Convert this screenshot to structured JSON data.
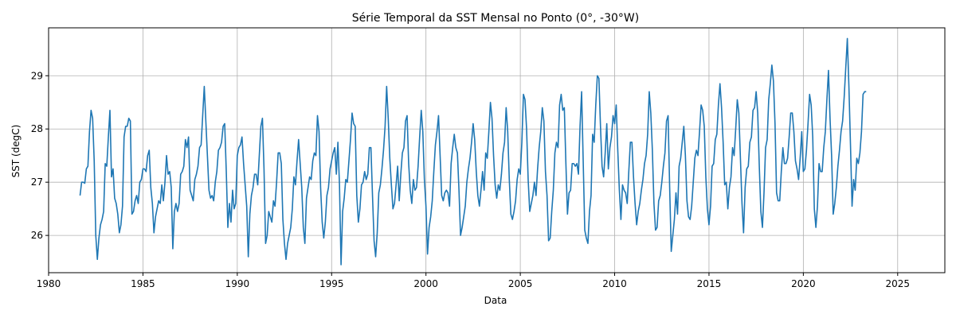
{
  "chart_data": {
    "type": "line",
    "title": "Série Temporal da SST Mensal no Ponto (0°, -30°W)",
    "xlabel": "Data",
    "ylabel": "SST (degC)",
    "xlim": [
      1980,
      2027.5
    ],
    "ylim": [
      25.3,
      29.9
    ],
    "xticks": [
      1980,
      1985,
      1990,
      1995,
      2000,
      2005,
      2010,
      2015,
      2020,
      2025
    ],
    "yticks": [
      26,
      27,
      28,
      29
    ],
    "grid": true,
    "legend": "none",
    "series": [
      {
        "color": "#1f77b4",
        "x_start": 1981.667,
        "x_step": 0.08333,
        "values": [
          26.75,
          27.0,
          27.0,
          26.98,
          27.25,
          27.3,
          27.95,
          28.35,
          28.2,
          27.4,
          26.0,
          25.55,
          25.95,
          26.2,
          26.3,
          26.45,
          27.35,
          27.3,
          27.85,
          28.35,
          27.1,
          27.25,
          26.7,
          26.6,
          26.4,
          26.05,
          26.2,
          26.55,
          27.85,
          28.05,
          28.05,
          28.2,
          28.15,
          26.4,
          26.45,
          26.65,
          26.75,
          26.6,
          27.0,
          27.05,
          27.25,
          27.25,
          27.2,
          27.5,
          27.6,
          26.9,
          26.6,
          26.05,
          26.35,
          26.5,
          26.65,
          26.6,
          26.95,
          26.65,
          27.0,
          27.5,
          27.15,
          27.2,
          26.9,
          25.75,
          26.45,
          26.6,
          26.45,
          26.6,
          27.15,
          27.2,
          27.3,
          27.8,
          27.65,
          27.85,
          26.85,
          26.75,
          26.65,
          27.05,
          27.15,
          27.3,
          27.65,
          27.7,
          28.25,
          28.8,
          28.15,
          27.5,
          26.85,
          26.7,
          26.75,
          26.65,
          27.0,
          27.2,
          27.6,
          27.65,
          27.75,
          28.05,
          28.1,
          27.2,
          26.15,
          26.6,
          26.25,
          26.85,
          26.5,
          26.6,
          27.5,
          27.65,
          27.7,
          27.85,
          27.35,
          26.95,
          26.55,
          25.6,
          26.4,
          26.75,
          26.9,
          27.15,
          27.15,
          26.95,
          27.5,
          28.05,
          28.2,
          27.25,
          25.85,
          26.0,
          26.45,
          26.35,
          26.25,
          26.65,
          26.55,
          27.0,
          27.55,
          27.55,
          27.35,
          26.3,
          25.85,
          25.55,
          25.85,
          26.0,
          26.15,
          26.5,
          27.1,
          26.95,
          27.4,
          27.8,
          27.35,
          26.9,
          26.15,
          25.85,
          26.7,
          26.9,
          27.1,
          27.05,
          27.4,
          27.55,
          27.5,
          28.25,
          27.95,
          26.9,
          26.25,
          25.95,
          26.25,
          26.75,
          26.9,
          27.25,
          27.4,
          27.55,
          27.65,
          27.15,
          27.75,
          26.95,
          25.45,
          26.45,
          26.7,
          27.05,
          27.0,
          27.4,
          27.8,
          28.3,
          28.1,
          28.05,
          26.75,
          26.25,
          26.5,
          26.95,
          27.0,
          27.2,
          27.05,
          27.15,
          27.65,
          27.65,
          26.75,
          25.9,
          25.6,
          26.05,
          26.8,
          26.95,
          27.25,
          27.6,
          28.05,
          28.8,
          28.2,
          27.45,
          26.95,
          26.5,
          26.6,
          26.95,
          27.3,
          26.65,
          27.15,
          27.55,
          27.65,
          28.15,
          28.25,
          27.35,
          26.85,
          26.6,
          27.05,
          26.85,
          26.9,
          27.3,
          27.85,
          28.35,
          27.95,
          27.05,
          26.55,
          25.65,
          26.15,
          26.35,
          26.65,
          27.2,
          27.7,
          27.95,
          28.25,
          27.5,
          26.75,
          26.65,
          26.8,
          26.85,
          26.8,
          26.55,
          27.35,
          27.65,
          27.9,
          27.65,
          27.55,
          26.85,
          26.0,
          26.15,
          26.35,
          26.55,
          27.0,
          27.25,
          27.45,
          27.75,
          28.1,
          27.8,
          27.2,
          26.75,
          26.55,
          26.85,
          27.2,
          26.85,
          27.55,
          27.45,
          27.95,
          28.5,
          28.2,
          27.5,
          26.95,
          26.7,
          26.95,
          26.85,
          27.15,
          27.55,
          27.75,
          28.4,
          27.95,
          27.05,
          26.4,
          26.3,
          26.45,
          26.65,
          27.05,
          27.25,
          27.15,
          27.75,
          28.65,
          28.55,
          28.0,
          27.05,
          26.45,
          26.6,
          26.75,
          27.0,
          26.75,
          27.25,
          27.65,
          27.95,
          28.4,
          28.15,
          27.2,
          26.75,
          25.9,
          25.95,
          26.45,
          26.85,
          27.55,
          27.75,
          27.65,
          28.45,
          28.65,
          28.35,
          28.4,
          27.35,
          26.4,
          26.8,
          26.85,
          27.35,
          27.35,
          27.3,
          27.35,
          27.15,
          28.05,
          28.7,
          27.4,
          26.1,
          25.95,
          25.85,
          26.45,
          26.75,
          27.9,
          27.75,
          28.45,
          29.0,
          28.95,
          28.05,
          27.3,
          27.1,
          27.55,
          28.1,
          27.25,
          27.65,
          27.85,
          28.25,
          28.1,
          28.45,
          27.6,
          26.85,
          26.3,
          26.95,
          26.85,
          26.8,
          26.6,
          27.2,
          27.75,
          27.75,
          27.1,
          26.6,
          26.2,
          26.45,
          26.6,
          26.85,
          27.05,
          27.35,
          27.5,
          27.9,
          28.7,
          28.3,
          27.6,
          26.6,
          26.1,
          26.15,
          26.65,
          26.75,
          27.0,
          27.3,
          27.55,
          28.15,
          28.25,
          26.9,
          25.7,
          26.0,
          26.3,
          26.8,
          26.4,
          27.3,
          27.45,
          27.75,
          28.05,
          27.5,
          26.65,
          26.35,
          26.3,
          26.55,
          27.0,
          27.45,
          27.6,
          27.5,
          27.95,
          28.45,
          28.35,
          28.05,
          27.1,
          26.5,
          26.2,
          26.55,
          27.3,
          27.35,
          27.8,
          27.9,
          28.45,
          28.85,
          28.4,
          27.75,
          26.95,
          27.0,
          26.5,
          26.9,
          27.1,
          27.65,
          27.5,
          28.0,
          28.55,
          28.3,
          27.45,
          26.6,
          26.05,
          26.9,
          27.25,
          27.3,
          27.75,
          27.85,
          28.35,
          28.4,
          28.7,
          28.3,
          27.3,
          26.45,
          26.15,
          26.8,
          27.65,
          27.8,
          28.55,
          28.85,
          29.2,
          28.9,
          28.1,
          26.8,
          26.65,
          26.65,
          27.2,
          27.65,
          27.35,
          27.35,
          27.45,
          27.85,
          28.3,
          28.3,
          27.95,
          27.4,
          27.25,
          27.05,
          27.45,
          27.95,
          27.2,
          27.25,
          27.6,
          28.1,
          28.65,
          28.45,
          27.85,
          26.5,
          26.15,
          26.55,
          27.35,
          27.2,
          27.2,
          27.65,
          27.95,
          28.55,
          29.1,
          28.2,
          27.5,
          26.4,
          26.6,
          26.9,
          27.3,
          27.6,
          27.95,
          28.15,
          28.6,
          29.15,
          29.7,
          28.8,
          27.7,
          26.55,
          27.05,
          26.85,
          27.45,
          27.35,
          27.55,
          27.95,
          28.65,
          28.7,
          28.7
        ]
      }
    ]
  }
}
